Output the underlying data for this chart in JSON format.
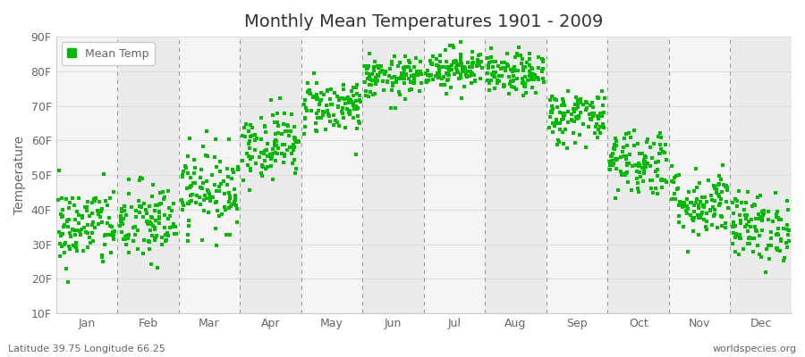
{
  "title": "Monthly Mean Temperatures 1901 - 2009",
  "ylabel": "Temperature",
  "ylim": [
    10,
    90
  ],
  "yticks": [
    10,
    20,
    30,
    40,
    50,
    60,
    70,
    80,
    90
  ],
  "ytick_labels": [
    "10F",
    "20F",
    "30F",
    "40F",
    "50F",
    "60F",
    "70F",
    "80F",
    "90F"
  ],
  "months": [
    "Jan",
    "Feb",
    "Mar",
    "Apr",
    "May",
    "Jun",
    "Jul",
    "Aug",
    "Sep",
    "Oct",
    "Nov",
    "Dec"
  ],
  "mean_temps_F": [
    35,
    36,
    46,
    59,
    70,
    78,
    81,
    79,
    67,
    54,
    42,
    35
  ],
  "std_temps_F": [
    6,
    6,
    6,
    5,
    4,
    3,
    3,
    3,
    4,
    5,
    5,
    5
  ],
  "n_years": 109,
  "dot_color": "#00bb00",
  "dot_size": 7,
  "fig_bg_color": "#ffffff",
  "plot_bg_light": "#f5f5f5",
  "plot_bg_dark": "#ebebeb",
  "grid_color": "#dddddd",
  "vline_color": "#999999",
  "legend_label": "Mean Temp",
  "bottom_left_text": "Latitude 39.75 Longitude 66.25",
  "bottom_right_text": "worldspecies.org",
  "font_color": "#666666",
  "title_font_color": "#333333"
}
